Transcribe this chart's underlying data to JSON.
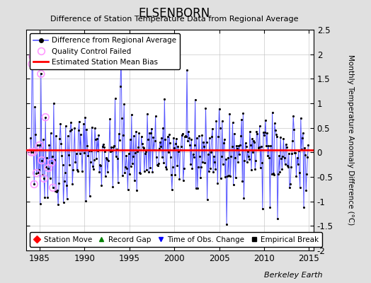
{
  "title": "ELSENBORN",
  "subtitle": "Difference of Station Temperature Data from Regional Average",
  "ylabel": "Monthly Temperature Anomaly Difference (°C)",
  "xlabel_bottom": "Berkeley Earth",
  "ylim": [
    -2.0,
    2.5
  ],
  "yticks": [
    -2.0,
    -1.5,
    -1.0,
    -0.5,
    0.0,
    0.5,
    1.0,
    1.5,
    2.0,
    2.5
  ],
  "ytick_labels": [
    "-2",
    "-1.5",
    "-1",
    "-0.5",
    "0",
    "0.5",
    "1",
    "1.5",
    "2",
    "2.5"
  ],
  "xlim": [
    1983.5,
    2015.5
  ],
  "xticks": [
    1985,
    1990,
    1995,
    2000,
    2005,
    2010,
    2015
  ],
  "bias_line_y": 0.05,
  "line_color": "#5555ff",
  "dot_color": "#000000",
  "qc_fail_color": "#ff99ff",
  "bias_color": "#ff0000",
  "bg_color": "#e0e0e0",
  "plot_bg_color": "#ffffff",
  "grid_color": "#bbbbbb",
  "seed": 42,
  "n_months": 372,
  "start_year": 1984.0,
  "qc_fail_indices": [
    1,
    2,
    3,
    4,
    5,
    8,
    12,
    14,
    15,
    18,
    20,
    24,
    28,
    30
  ],
  "figsize": [
    5.24,
    4.0
  ],
  "dpi": 100
}
